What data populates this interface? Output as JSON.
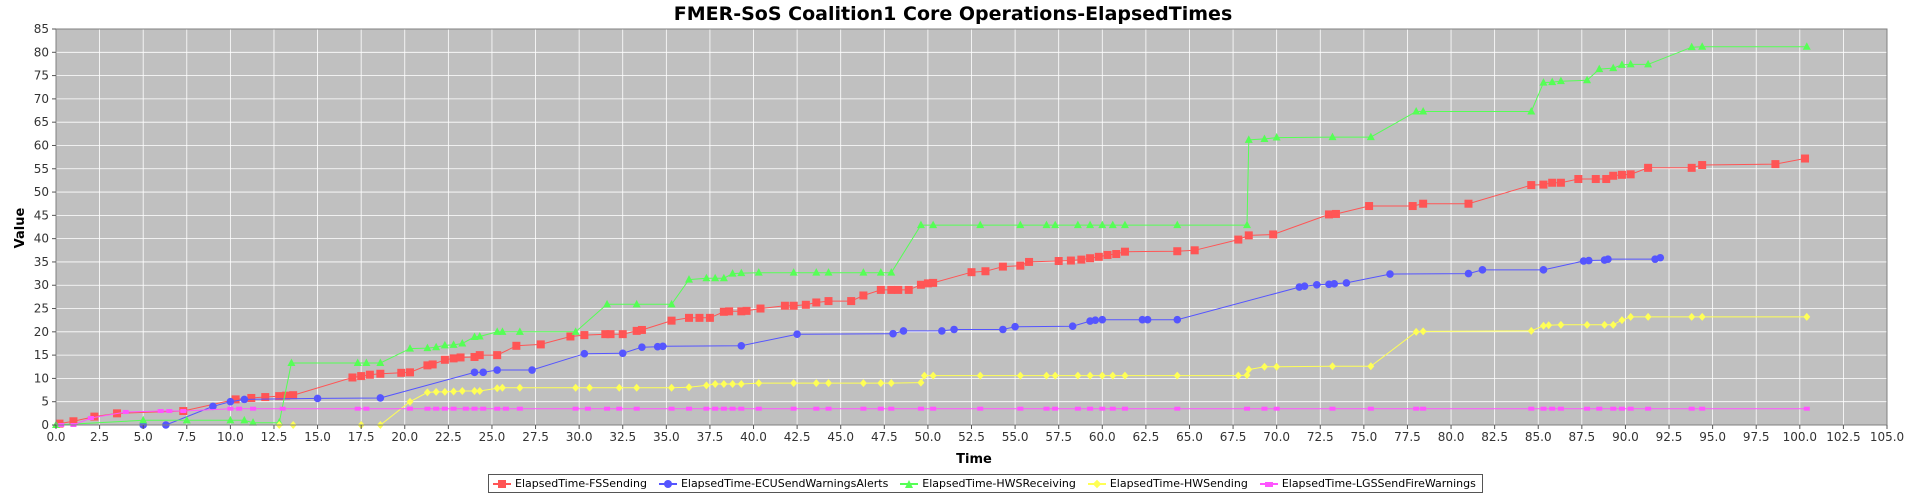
{
  "chart_data": {
    "type": "line",
    "title": "FMER-SoS Coalition1 Core Operations-ElapsedTimes",
    "xlabel": "Time",
    "ylabel": "Value",
    "xlim": [
      0,
      105
    ],
    "ylim": [
      0,
      85
    ],
    "xticks": [
      "0.0",
      "2.5",
      "5.0",
      "7.5",
      "10.0",
      "12.5",
      "15.0",
      "17.5",
      "20.0",
      "22.5",
      "25.0",
      "27.5",
      "30.0",
      "32.5",
      "35.0",
      "37.5",
      "40.0",
      "42.5",
      "45.0",
      "47.5",
      "50.0",
      "52.5",
      "55.0",
      "57.5",
      "60.0",
      "62.5",
      "65.0",
      "67.5",
      "70.0",
      "72.5",
      "75.0",
      "77.5",
      "80.0",
      "82.5",
      "85.0",
      "87.5",
      "90.0",
      "92.5",
      "95.0",
      "97.5",
      "100.0",
      "102.5",
      "105.0"
    ],
    "yticks": [
      "0",
      "5",
      "10",
      "15",
      "20",
      "25",
      "30",
      "35",
      "40",
      "45",
      "50",
      "55",
      "60",
      "65",
      "70",
      "75",
      "80",
      "85"
    ],
    "grid": true,
    "legend_position": "bottom",
    "plot_background": "#c0c0c0",
    "series": [
      {
        "name": "ElapsedTime-FSSending",
        "color": "#ff5555",
        "marker": "square",
        "x": [
          0.2,
          1.0,
          2.2,
          3.5,
          7.3,
          10.3,
          11.2,
          12.0,
          12.8,
          13.2,
          13.6,
          17.0,
          17.5,
          18.0,
          18.6,
          19.8,
          20.3,
          21.3,
          21.6,
          22.3,
          22.8,
          23.2,
          24.0,
          24.3,
          25.3,
          26.4,
          27.8,
          29.5,
          30.3,
          31.5,
          31.8,
          32.5,
          33.3,
          33.6,
          35.3,
          36.3,
          36.9,
          37.5,
          38.3,
          38.6,
          39.3,
          39.6,
          40.4,
          41.8,
          42.3,
          43.0,
          43.6,
          44.3,
          45.6,
          46.3,
          47.3,
          47.9,
          48.3,
          48.9,
          49.6,
          50.0,
          50.3,
          52.5,
          53.3,
          54.3,
          55.3,
          55.8,
          57.5,
          58.2,
          58.8,
          59.3,
          59.8,
          60.3,
          60.8,
          61.3,
          64.3,
          65.3,
          67.8,
          68.4,
          69.8,
          73.0,
          73.4,
          75.3,
          77.8,
          78.4,
          81.0,
          84.6,
          85.3,
          85.8,
          86.3,
          87.3,
          88.3,
          88.9,
          89.3,
          89.8,
          90.3,
          91.3,
          93.8,
          94.4,
          98.6,
          100.3
        ],
        "y": [
          0.3,
          0.8,
          1.8,
          2.5,
          3,
          5.5,
          5.8,
          6,
          6.2,
          6.3,
          6.4,
          10.2,
          10.5,
          10.8,
          11,
          11.2,
          11.3,
          12.8,
          13.0,
          14.0,
          14.3,
          14.5,
          14.6,
          15.0,
          15.0,
          17.0,
          17.3,
          19.0,
          19.3,
          19.5,
          19.5,
          19.5,
          20.2,
          20.4,
          22.4,
          23,
          23,
          23,
          24.3,
          24.4,
          24.4,
          24.5,
          25.0,
          25.6,
          25.6,
          25.8,
          26.3,
          26.6,
          26.6,
          27.8,
          29.0,
          29.0,
          29.0,
          29.0,
          30.1,
          30.4,
          30.5,
          32.8,
          33.0,
          34.0,
          34.2,
          35.0,
          35.2,
          35.3,
          35.5,
          35.8,
          36.1,
          36.5,
          36.7,
          37.2,
          37.3,
          37.5,
          39.8,
          40.7,
          40.9,
          45.2,
          45.3,
          47.0,
          47.0,
          47.5,
          47.5,
          51.5,
          51.6,
          52.0,
          52.0,
          52.8,
          52.8,
          52.8,
          53.5,
          53.7,
          53.8,
          55.2,
          55.2,
          55.8,
          56,
          57.2
        ]
      },
      {
        "name": "ElapsedTime-ECUSendWarningsAlerts",
        "color": "#5555ff",
        "marker": "circle",
        "x": [
          5.0,
          6.3,
          9.0,
          10.0,
          10.8,
          15.0,
          18.6,
          24.0,
          24.5,
          25.3,
          27.3,
          30.3,
          32.5,
          33.6,
          34.5,
          34.8,
          39.3,
          42.5,
          48.0,
          48.6,
          50.8,
          51.5,
          54.3,
          55.0,
          58.3,
          59.3,
          59.6,
          60.0,
          62.3,
          62.6,
          64.3,
          71.3,
          71.6,
          72.3,
          73.0,
          73.3,
          74.0,
          76.5,
          81.0,
          81.8,
          85.3,
          87.6,
          87.9,
          88.8,
          89.0,
          91.7,
          92.0
        ],
        "y": [
          0,
          0,
          4,
          5,
          5.5,
          5.7,
          5.8,
          11.3,
          11.3,
          11.8,
          11.8,
          15.3,
          15.4,
          16.7,
          16.8,
          16.9,
          17.0,
          19.5,
          19.6,
          20.2,
          20.2,
          20.5,
          20.5,
          21.1,
          21.2,
          22.3,
          22.5,
          22.6,
          22.6,
          22.6,
          22.6,
          29.6,
          29.8,
          30.1,
          30.2,
          30.3,
          30.5,
          32.4,
          32.5,
          33.3,
          33.3,
          35.2,
          35.3,
          35.4,
          35.6,
          35.6,
          35.9
        ]
      },
      {
        "name": "ElapsedTime-HWSReceiving",
        "color": "#55ff55",
        "marker": "triangle",
        "x": [
          0,
          5,
          7.5,
          10.0,
          10.8,
          11.3,
          12.8,
          13.5,
          17.3,
          17.8,
          18.6,
          20.3,
          21.3,
          21.8,
          22.3,
          22.8,
          23.3,
          24.0,
          24.3,
          25.3,
          25.6,
          26.6,
          29.8,
          31.6,
          33.3,
          35.3,
          36.3,
          37.3,
          37.8,
          38.3,
          38.8,
          39.3,
          40.3,
          42.3,
          43.6,
          44.3,
          46.3,
          47.3,
          47.9,
          49.6,
          50.3,
          53.0,
          55.3,
          56.8,
          57.3,
          58.6,
          59.3,
          60.0,
          60.6,
          61.3,
          64.3,
          68.3,
          68.4,
          69.3,
          70.0,
          73.2,
          75.4,
          78.0,
          78.4,
          84.6,
          85.3,
          85.8,
          86.3,
          87.8,
          88.5,
          89.3,
          89.8,
          90.3,
          91.3,
          93.8,
          94.4,
          100.4
        ],
        "y": [
          0,
          1,
          1,
          1,
          1,
          0.5,
          0.5,
          13.3,
          13.3,
          13.3,
          13.3,
          16.4,
          16.5,
          16.7,
          17.1,
          17.2,
          17.5,
          18.9,
          19.0,
          20.0,
          20.0,
          20.0,
          20.0,
          25.9,
          25.9,
          25.9,
          31.2,
          31.5,
          31.5,
          31.5,
          32.5,
          32.6,
          32.7,
          32.7,
          32.7,
          32.7,
          32.7,
          32.7,
          32.7,
          42.9,
          42.9,
          42.9,
          42.9,
          42.9,
          42.9,
          42.9,
          42.9,
          42.9,
          42.9,
          42.9,
          42.9,
          42.9,
          61.2,
          61.4,
          61.7,
          61.8,
          61.8,
          67.3,
          67.3,
          67.3,
          73.5,
          73.6,
          73.8,
          74.0,
          76.4,
          76.6,
          77.3,
          77.4,
          77.4,
          81.1,
          81.2,
          81.2
        ]
      },
      {
        "name": "ElapsedTime-HWSending",
        "color": "#ffff55",
        "marker": "diamond",
        "x": [
          12.8,
          13.6,
          17.5,
          18.6,
          20.3,
          21.3,
          21.8,
          22.3,
          22.8,
          23.3,
          24.0,
          24.3,
          25.3,
          25.6,
          26.6,
          29.8,
          30.6,
          32.3,
          33.3,
          35.3,
          36.3,
          37.3,
          37.8,
          38.3,
          38.8,
          39.3,
          40.3,
          42.3,
          43.6,
          44.3,
          46.3,
          47.3,
          47.9,
          49.6,
          49.8,
          50.3,
          53.0,
          55.3,
          56.8,
          57.3,
          58.6,
          59.3,
          60.0,
          60.6,
          61.3,
          64.3,
          67.8,
          68.3,
          68.4,
          69.3,
          70.0,
          73.2,
          75.4,
          78.0,
          78.4,
          84.6,
          85.3,
          85.6,
          86.3,
          87.8,
          88.8,
          89.3,
          89.8,
          90.3,
          91.3,
          93.8,
          94.4,
          100.4
        ],
        "y": [
          0,
          0,
          0,
          0,
          5,
          7,
          7.1,
          7.1,
          7.2,
          7.3,
          7.3,
          7.3,
          7.9,
          8,
          8,
          8,
          8,
          8,
          8,
          8,
          8.1,
          8.5,
          8.8,
          8.8,
          8.8,
          8.8,
          9.0,
          9.0,
          9.0,
          9.0,
          9.0,
          9.0,
          9.0,
          9.1,
          10.6,
          10.6,
          10.6,
          10.6,
          10.6,
          10.6,
          10.6,
          10.6,
          10.6,
          10.6,
          10.6,
          10.6,
          10.6,
          10.7,
          11.9,
          12.5,
          12.5,
          12.6,
          12.6,
          20.0,
          20.1,
          20.2,
          21.3,
          21.4,
          21.5,
          21.5,
          21.5,
          21.5,
          22.5,
          23.2,
          23.2,
          23.2,
          23.2,
          23.2
        ]
      },
      {
        "name": "ElapsedTime-LGSSendFireWarnings",
        "color": "#ff55ff",
        "marker": "square-small",
        "x": [
          0.3,
          1.0,
          2.0,
          4.0,
          6.0,
          6.5,
          7.3,
          10.0,
          10.5,
          11.3,
          13.0,
          17.3,
          17.8,
          20.3,
          21.3,
          21.8,
          22.3,
          22.8,
          23.5,
          24.0,
          24.5,
          25.3,
          25.8,
          26.6,
          29.8,
          30.5,
          31.6,
          32.3,
          33.3,
          35.3,
          36.3,
          37.3,
          37.8,
          38.3,
          38.8,
          39.3,
          40.3,
          42.3,
          43.6,
          44.3,
          46.3,
          47.3,
          47.9,
          49.6,
          50.3,
          53.0,
          55.3,
          56.8,
          57.3,
          58.6,
          59.3,
          60.0,
          60.6,
          61.3,
          64.3,
          68.3,
          69.3,
          70.0,
          73.2,
          75.4,
          78.0,
          78.4,
          84.6,
          85.3,
          85.8,
          86.3,
          87.8,
          88.5,
          89.3,
          89.8,
          90.3,
          91.3,
          93.8,
          94.4,
          100.4
        ],
        "y": [
          0,
          0,
          1.5,
          2.8,
          3,
          3,
          3,
          3.5,
          3.5,
          3.5,
          3.5,
          3.5,
          3.5,
          3.5,
          3.5,
          3.5,
          3.5,
          3.5,
          3.5,
          3.5,
          3.5,
          3.5,
          3.5,
          3.5,
          3.5,
          3.5,
          3.5,
          3.5,
          3.5,
          3.5,
          3.5,
          3.5,
          3.5,
          3.5,
          3.5,
          3.5,
          3.5,
          3.5,
          3.5,
          3.5,
          3.5,
          3.5,
          3.5,
          3.5,
          3.5,
          3.5,
          3.5,
          3.5,
          3.5,
          3.5,
          3.5,
          3.5,
          3.5,
          3.5,
          3.5,
          3.5,
          3.5,
          3.5,
          3.5,
          3.5,
          3.5,
          3.5,
          3.5,
          3.5,
          3.5,
          3.5,
          3.5,
          3.5,
          3.5,
          3.5,
          3.5,
          3.5,
          3.5,
          3.5,
          3.5
        ]
      }
    ]
  }
}
